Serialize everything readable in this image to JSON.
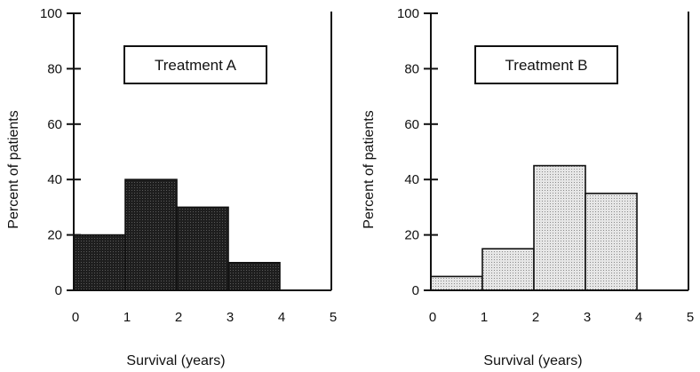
{
  "chart_data": [
    {
      "type": "bar",
      "title": "Treatment  A",
      "xlabel": "Survival (years)",
      "ylabel": "Percent of patients",
      "x_ticks": [
        "0",
        "1",
        "2",
        "3",
        "4",
        "5"
      ],
      "y_ticks": [
        "0",
        "20",
        "40",
        "60",
        "80",
        "100"
      ],
      "xlim": [
        0,
        5
      ],
      "ylim": [
        0,
        100
      ],
      "bins": [
        [
          0,
          1
        ],
        [
          1,
          2
        ],
        [
          2,
          3
        ],
        [
          3,
          4
        ]
      ],
      "values": [
        20,
        40,
        30,
        10
      ],
      "fill": "#2a2a2a",
      "grid": false
    },
    {
      "type": "bar",
      "title": "Treatment  B",
      "xlabel": "Survival (years)",
      "ylabel": "Percent of patients",
      "x_ticks": [
        "0",
        "1",
        "2",
        "3",
        "4",
        "5"
      ],
      "y_ticks": [
        "0",
        "20",
        "40",
        "60",
        "80",
        "100"
      ],
      "xlim": [
        0,
        5
      ],
      "ylim": [
        0,
        100
      ],
      "bins": [
        [
          0,
          1
        ],
        [
          1,
          2
        ],
        [
          2,
          3
        ],
        [
          3,
          4
        ]
      ],
      "values": [
        5,
        15,
        45,
        35
      ],
      "fill": "#d8d8d8",
      "grid": false
    }
  ]
}
